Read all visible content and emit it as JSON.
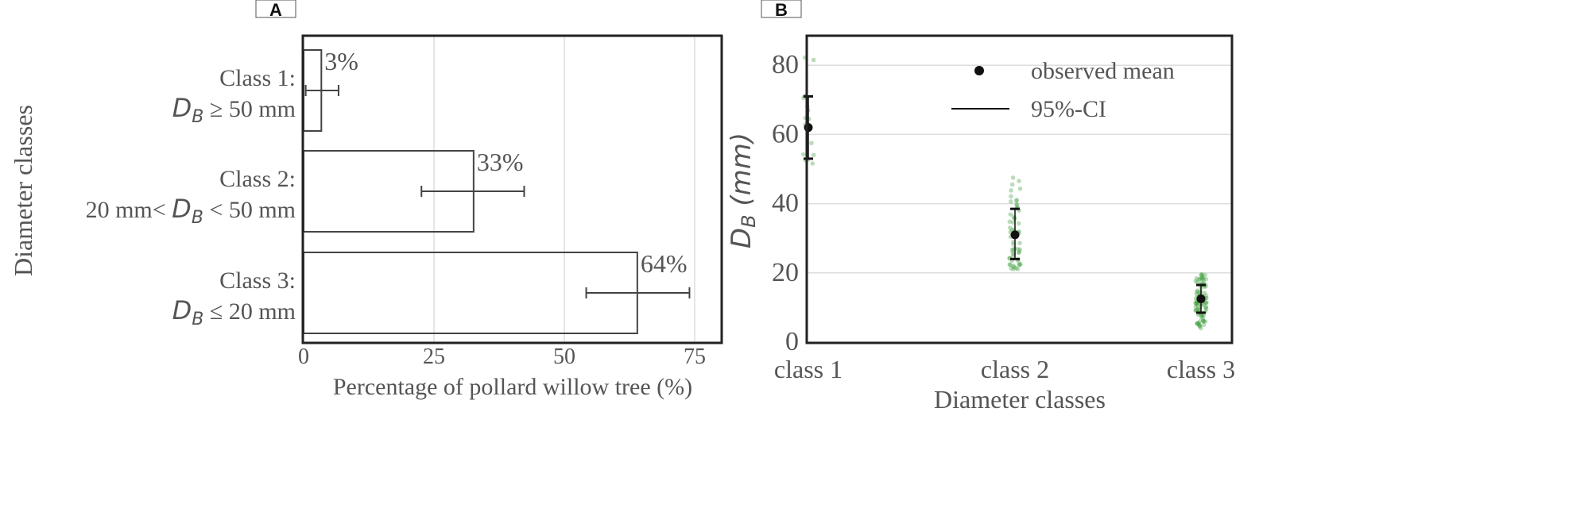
{
  "chart_data": [
    {
      "panel": "A",
      "type": "bar",
      "orientation": "horizontal",
      "xlabel": "Percentage of pollard willow tree (%)",
      "ylabel": "Diameter classes",
      "xlim": [
        0,
        80
      ],
      "xticks": [
        0,
        25,
        50,
        75
      ],
      "grid": true,
      "categories": [
        {
          "line1": "Class 1:",
          "line2_prefix": "",
          "sym": "D",
          "sub": "B",
          "line2_suffix": " ≥  50 mm"
        },
        {
          "line1": "Class 2:",
          "line2_prefix": "20 mm< ",
          "sym": "D",
          "sub": "B",
          "line2_suffix": " < 50 mm"
        },
        {
          "line1": "Class 3:",
          "line2_prefix": "",
          "sym": "D",
          "sub": "B",
          "line2_suffix": " ≤  20 mm"
        }
      ],
      "values": [
        3.4,
        32.6,
        64
      ],
      "error_low": [
        0.4,
        22.6,
        54.2
      ],
      "error_high": [
        6.7,
        42.3,
        74
      ],
      "data_labels": [
        "3%",
        "33%",
        "64%"
      ]
    },
    {
      "panel": "B",
      "type": "scatter",
      "xlabel": "Diameter classes",
      "ylabel_sym": "D",
      "ylabel_sub": "B",
      "ylabel_unit": " (mm)",
      "ylim": [
        0,
        88
      ],
      "yticks": [
        0,
        20,
        40,
        60,
        80
      ],
      "grid": true,
      "categories": [
        "class 1",
        "class 2",
        "class 3"
      ],
      "means": [
        62,
        31,
        12.5
      ],
      "ci_low": [
        53,
        24,
        8.5
      ],
      "ci_high": [
        71,
        38.5,
        16.5
      ],
      "point_ranges": [
        [
          50,
          84
        ],
        [
          21,
          49
        ],
        [
          4,
          20
        ]
      ],
      "point_counts": [
        18,
        60,
        90
      ],
      "legend": {
        "position": "top-right",
        "mean_label": "observed mean",
        "ci_label": "95%-CI"
      },
      "colors": {
        "points": "#3a9a3a",
        "mean": "#111111"
      }
    }
  ],
  "panel_tags": [
    "A",
    "B"
  ]
}
